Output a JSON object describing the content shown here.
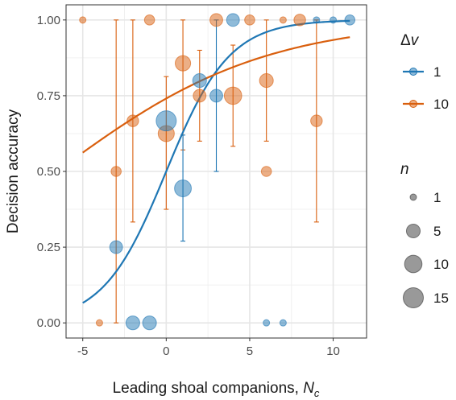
{
  "chart_data": {
    "type": "scatter",
    "xlabel": "Leading shoal companions, ",
    "xlabel_var": "N",
    "xlabel_sub": "c",
    "ylabel": "Decision accuracy",
    "xlim": [
      -6,
      12
    ],
    "ylim": [
      -0.05,
      1.05
    ],
    "x_ticks": [
      -5,
      0,
      5,
      10
    ],
    "x_tick_labels": [
      "-5",
      "0",
      "5",
      "10"
    ],
    "y_ticks": [
      0,
      0.25,
      0.5,
      0.75,
      1
    ],
    "y_tick_labels": [
      "0.00",
      "0.25",
      "0.50",
      "0.75",
      "1.00"
    ],
    "grid": true,
    "colors": {
      "dv1": "#1f77b4",
      "dv10": "#d95f0e"
    },
    "legend_color": {
      "title_symbol": "Δ",
      "title_var": "v",
      "entries": [
        {
          "label": "1",
          "series": "dv1"
        },
        {
          "label": "10",
          "series": "dv10"
        }
      ]
    },
    "legend_size": {
      "title": "n",
      "entries": [
        {
          "label": "1",
          "n": 1
        },
        {
          "label": "5",
          "n": 5
        },
        {
          "label": "10",
          "n": 10
        },
        {
          "label": "15",
          "n": 15
        }
      ]
    },
    "series": [
      {
        "name": "1",
        "key": "dv1",
        "fit": {
          "type": "logistic",
          "intercept": 0.0,
          "slope": 0.53,
          "x_range": [
            -5,
            11
          ]
        },
        "points": [
          {
            "x": -3,
            "y": 0.25,
            "n": 4
          },
          {
            "x": -2,
            "y": 0.0,
            "n": 5
          },
          {
            "x": -1,
            "y": 0.0,
            "n": 5
          },
          {
            "x": 0,
            "y": 0.667,
            "n": 15
          },
          {
            "x": 1,
            "y": 0.444,
            "n": 9,
            "lo": 0.27,
            "hi": 0.62
          },
          {
            "x": 2,
            "y": 0.8,
            "n": 5
          },
          {
            "x": 3,
            "y": 0.75,
            "n": 4,
            "lo": 0.5,
            "hi": 1.0
          },
          {
            "x": 4,
            "y": 1.0,
            "n": 4
          },
          {
            "x": 6,
            "y": 0.0,
            "n": 1
          },
          {
            "x": 7,
            "y": 0.0,
            "n": 1
          },
          {
            "x": 9,
            "y": 1.0,
            "n": 1
          },
          {
            "x": 10,
            "y": 1.0,
            "n": 1
          },
          {
            "x": 11,
            "y": 1.0,
            "n": 2
          }
        ]
      },
      {
        "name": "10",
        "key": "dv10",
        "fit": {
          "type": "logistic",
          "intercept": 1.05,
          "slope": 0.16,
          "x_range": [
            -5,
            11
          ]
        },
        "points": [
          {
            "x": -5,
            "y": 1.0,
            "n": 1
          },
          {
            "x": -4,
            "y": 0.0,
            "n": 1
          },
          {
            "x": -3,
            "y": 0.5,
            "n": 2,
            "lo": 0.0,
            "hi": 1.0
          },
          {
            "x": -2,
            "y": 0.667,
            "n": 3,
            "lo": 0.333,
            "hi": 1.0
          },
          {
            "x": -1,
            "y": 1.0,
            "n": 2
          },
          {
            "x": 0,
            "y": 0.625,
            "n": 8,
            "lo": 0.375,
            "hi": 0.813
          },
          {
            "x": 1,
            "y": 0.857,
            "n": 7,
            "lo": 0.571,
            "hi": 1.0
          },
          {
            "x": 2,
            "y": 0.75,
            "n": 4,
            "lo": 0.6,
            "hi": 0.9
          },
          {
            "x": 3,
            "y": 1.0,
            "n": 4
          },
          {
            "x": 4,
            "y": 0.75,
            "n": 10,
            "lo": 0.583,
            "hi": 0.917
          },
          {
            "x": 5,
            "y": 1.0,
            "n": 2
          },
          {
            "x": 6,
            "y": 0.8,
            "n": 5,
            "lo": 0.6,
            "hi": 1.0
          },
          {
            "x": 6,
            "y": 0.5,
            "n": 2
          },
          {
            "x": 7,
            "y": 1.0,
            "n": 1
          },
          {
            "x": 8,
            "y": 1.0,
            "n": 3
          },
          {
            "x": 9,
            "y": 0.667,
            "n": 3,
            "lo": 0.333,
            "hi": 1.0
          }
        ]
      }
    ]
  }
}
